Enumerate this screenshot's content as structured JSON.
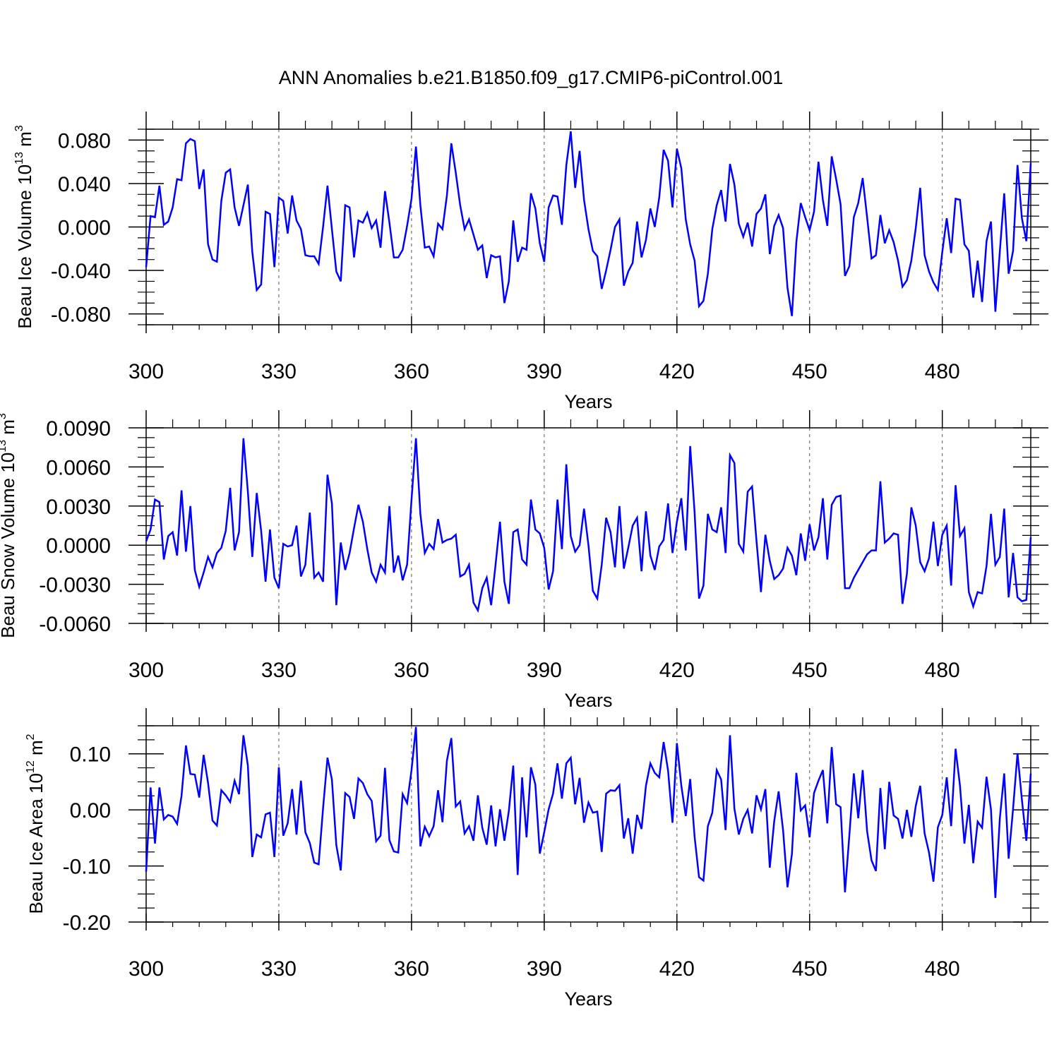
{
  "figure_title": "ANN Anomalies b.e21.B1850.f09_g17.CMIP6-piControl.001",
  "colors": {
    "line": "#0000ff",
    "axis": "#000000",
    "grid": "#555555"
  },
  "chart_data": [
    {
      "type": "line",
      "ylabel": {
        "main": "Beau Ice Volume 10",
        "exp": "13",
        "unit": " m",
        "unit_exp": "3"
      },
      "xlabel": "Years",
      "xlim": [
        300,
        500
      ],
      "ylim": [
        -0.09,
        0.09
      ],
      "xticks": [
        300,
        330,
        360,
        390,
        420,
        450,
        480
      ],
      "xtick_labels": [
        "300",
        "330",
        "360",
        "390",
        "420",
        "450",
        "480"
      ],
      "yticks": [
        -0.08,
        -0.04,
        0.0,
        0.04,
        0.08
      ],
      "ytick_labels": [
        "-0.080",
        "-0.040",
        "0.000",
        "0.040",
        "0.080"
      ],
      "grid": "vertical-dashed",
      "series": [
        {
          "x0": 300,
          "values": [
            -0.037,
            0.01,
            0.009,
            0.038,
            0.002,
            0.005,
            0.018,
            0.044,
            0.043,
            0.077,
            0.081,
            0.079,
            0.035,
            0.053,
            -0.016,
            -0.03,
            -0.032,
            0.024,
            0.05,
            0.053,
            0.018,
            0.001,
            0.02,
            0.039,
            -0.023,
            -0.058,
            -0.053,
            0.014,
            0.012,
            -0.037,
            0.027,
            0.024,
            -0.006,
            0.029,
            0.006,
            -0.002,
            -0.026,
            -0.027,
            -0.027,
            -0.034,
            0.0,
            0.038,
            -0.002,
            -0.041,
            -0.05,
            0.02,
            0.018,
            -0.028,
            0.006,
            0.004,
            0.013,
            -0.001,
            0.006,
            -0.019,
            0.033,
            0.004,
            -0.028,
            -0.028,
            -0.021,
            0.001,
            0.026,
            0.074,
            0.02,
            -0.019,
            -0.018,
            -0.027,
            0.003,
            -0.002,
            0.029,
            0.077,
            0.05,
            0.02,
            -0.002,
            0.007,
            -0.007,
            -0.021,
            -0.017,
            -0.047,
            -0.026,
            -0.028,
            -0.027,
            -0.07,
            -0.05,
            0.006,
            -0.032,
            -0.019,
            -0.021,
            0.031,
            0.017,
            -0.015,
            -0.032,
            0.018,
            0.029,
            0.028,
            0.002,
            0.057,
            0.088,
            0.036,
            0.07,
            0.025,
            -0.002,
            -0.022,
            -0.027,
            -0.057,
            -0.04,
            -0.021,
            0.0,
            0.007,
            -0.054,
            -0.041,
            -0.033,
            0.005,
            -0.028,
            -0.012,
            0.017,
            0.0,
            0.027,
            0.071,
            0.061,
            0.018,
            0.072,
            0.054,
            0.007,
            -0.016,
            -0.031,
            -0.073,
            -0.068,
            -0.043,
            -0.002,
            0.02,
            0.034,
            0.005,
            0.058,
            0.039,
            0.003,
            -0.009,
            0.004,
            -0.018,
            0.012,
            0.017,
            0.03,
            -0.025,
            0.001,
            0.011,
            -0.001,
            -0.056,
            -0.082,
            -0.014,
            0.022,
            0.009,
            -0.003,
            0.014,
            0.06,
            0.025,
            0.001,
            0.065,
            0.044,
            0.021,
            -0.045,
            -0.036,
            0.009,
            0.022,
            0.045,
            0.009,
            -0.029,
            -0.026,
            0.011,
            -0.015,
            -0.003,
            -0.014,
            -0.031,
            -0.055,
            -0.049,
            -0.031,
            -0.001,
            0.036,
            -0.026,
            -0.041,
            -0.051,
            -0.058,
            -0.023,
            0.008,
            -0.024,
            0.026,
            0.025,
            -0.016,
            -0.022,
            -0.065,
            -0.031,
            -0.069,
            -0.013,
            0.005,
            -0.078,
            -0.023,
            0.031,
            -0.043,
            -0.022,
            0.057,
            0.008,
            -0.013,
            0.059
          ]
        }
      ]
    },
    {
      "type": "line",
      "ylabel": {
        "main": "Beau Snow Volume 10",
        "exp": "13",
        "unit": " m",
        "unit_exp": "3"
      },
      "xlabel": "Years",
      "xlim": [
        300,
        500
      ],
      "ylim": [
        -0.006,
        0.009
      ],
      "xticks": [
        300,
        330,
        360,
        390,
        420,
        450,
        480
      ],
      "xtick_labels": [
        "300",
        "330",
        "360",
        "390",
        "420",
        "450",
        "480"
      ],
      "yticks": [
        -0.006,
        -0.003,
        0.0,
        0.003,
        0.006,
        0.009
      ],
      "ytick_labels": [
        "-0.0060",
        "-0.0030",
        "0.0000",
        "0.0030",
        "0.0060",
        "0.0090"
      ],
      "grid": "vertical-dashed",
      "series": [
        {
          "x0": 300,
          "values": [
            0.0003,
            0.0012,
            0.0035,
            0.0033,
            -0.0011,
            0.0007,
            0.001,
            -0.0008,
            0.0042,
            -0.0005,
            0.003,
            -0.0019,
            -0.0032,
            -0.0021,
            -0.0009,
            -0.0017,
            -0.0006,
            -0.0002,
            0.0011,
            0.0044,
            -0.0004,
            0.001,
            0.0082,
            0.0041,
            -0.0009,
            0.004,
            0.0011,
            -0.0028,
            0.0012,
            -0.0025,
            -0.0033,
            0.0001,
            -0.0001,
            0.0,
            0.0015,
            -0.0024,
            -0.0015,
            0.0025,
            -0.0025,
            -0.0021,
            -0.0028,
            0.0054,
            0.0032,
            -0.0046,
            0.0002,
            -0.0019,
            -0.0006,
            0.0013,
            0.0031,
            0.0018,
            -0.0003,
            -0.0021,
            -0.0028,
            -0.0015,
            -0.0021,
            0.003,
            -0.0021,
            -0.0008,
            -0.0027,
            -0.0015,
            0.0035,
            0.0082,
            0.0024,
            -0.0006,
            0.0001,
            -0.0003,
            0.002,
            0.0002,
            0.0004,
            0.0005,
            0.0008,
            -0.0024,
            -0.0022,
            -0.0015,
            -0.0044,
            -0.005,
            -0.0033,
            -0.0025,
            -0.0046,
            -0.0015,
            0.0018,
            -0.0028,
            -0.0045,
            0.001,
            0.0012,
            -0.0011,
            -0.0015,
            0.0035,
            0.0012,
            0.0009,
            -0.0002,
            -0.0034,
            -0.002,
            0.0035,
            -0.0003,
            0.0062,
            0.0007,
            -0.0005,
            0.0,
            0.0028,
            0.0,
            -0.0035,
            -0.0041,
            -0.0015,
            0.0021,
            0.001,
            -0.0017,
            0.003,
            -0.0018,
            -0.0002,
            0.0015,
            0.0021,
            -0.002,
            0.0026,
            -0.0008,
            -0.0019,
            -0.0001,
            0.0004,
            0.0032,
            -0.0006,
            0.0018,
            0.0036,
            -0.0004,
            0.0076,
            0.0025,
            -0.0041,
            -0.0031,
            0.0024,
            0.0012,
            0.001,
            0.0029,
            -0.0006,
            0.0069,
            0.0063,
            0.0001,
            -0.0005,
            0.0041,
            0.0045,
            0.0003,
            -0.0036,
            0.0008,
            -0.0012,
            -0.0026,
            -0.0023,
            -0.0018,
            -0.0002,
            -0.0008,
            -0.0023,
            0.0009,
            -0.0012,
            0.0016,
            -0.0004,
            0.0006,
            0.0036,
            -0.0011,
            0.0031,
            0.0037,
            0.0038,
            -0.0033,
            -0.0033,
            -0.0025,
            -0.0019,
            -0.0013,
            -0.0007,
            -0.0004,
            -0.0004,
            0.0049,
            0.0002,
            0.0005,
            0.0009,
            0.0008,
            -0.0045,
            -0.0022,
            0.0029,
            0.0015,
            -0.0013,
            -0.002,
            -0.001,
            0.0018,
            -0.0016,
            0.0008,
            0.0015,
            -0.0031,
            0.0046,
            0.0007,
            0.0013,
            -0.0036,
            -0.0047,
            -0.0036,
            -0.0037,
            -0.0016,
            0.0024,
            -0.0015,
            -0.0009,
            0.0028,
            -0.004,
            -0.0006,
            -0.004,
            -0.0043,
            -0.0042,
            0.0006
          ]
        }
      ]
    },
    {
      "type": "line",
      "ylabel": {
        "main": "Beau Ice Area 10",
        "exp": "12",
        "unit": " m",
        "unit_exp": "2"
      },
      "xlabel": "Years",
      "xlim": [
        300,
        500
      ],
      "ylim": [
        -0.2,
        0.15
      ],
      "xticks": [
        300,
        330,
        360,
        390,
        420,
        450,
        480
      ],
      "xtick_labels": [
        "300",
        "330",
        "360",
        "390",
        "420",
        "450",
        "480"
      ],
      "yticks": [
        -0.2,
        -0.1,
        0.0,
        0.1
      ],
      "ytick_labels": [
        "-0.20",
        "-0.10",
        "0.00",
        "0.10"
      ],
      "grid": "vertical-dashed",
      "series": [
        {
          "x0": 300,
          "values": [
            -0.11,
            0.04,
            -0.06,
            0.04,
            -0.017,
            -0.009,
            -0.012,
            -0.025,
            0.025,
            0.115,
            0.064,
            0.063,
            0.022,
            0.098,
            0.048,
            -0.019,
            -0.028,
            0.035,
            0.026,
            0.014,
            0.052,
            0.028,
            0.133,
            0.079,
            -0.084,
            -0.044,
            -0.049,
            -0.008,
            -0.005,
            -0.084,
            0.076,
            -0.046,
            -0.024,
            0.037,
            -0.044,
            0.052,
            -0.04,
            -0.059,
            -0.094,
            -0.097,
            0.003,
            0.093,
            0.054,
            -0.063,
            -0.108,
            0.03,
            0.023,
            -0.016,
            0.056,
            0.048,
            0.028,
            0.016,
            -0.056,
            -0.046,
            0.075,
            -0.054,
            -0.074,
            -0.076,
            0.028,
            0.012,
            0.071,
            0.148,
            -0.065,
            -0.03,
            -0.047,
            -0.029,
            0.035,
            -0.022,
            0.088,
            0.128,
            0.006,
            0.015,
            -0.042,
            -0.029,
            -0.055,
            0.026,
            -0.032,
            -0.062,
            0.008,
            -0.065,
            0.001,
            -0.055,
            -0.002,
            0.079,
            -0.116,
            0.058,
            -0.049,
            0.076,
            0.045,
            -0.078,
            -0.04,
            0.001,
            0.029,
            0.083,
            0.02,
            0.083,
            0.093,
            0.01,
            0.057,
            -0.023,
            0.013,
            -0.005,
            -0.003,
            -0.075,
            0.029,
            0.035,
            0.034,
            0.044,
            -0.051,
            -0.015,
            -0.078,
            -0.009,
            -0.034,
            0.043,
            0.083,
            0.066,
            0.058,
            0.121,
            0.07,
            -0.023,
            0.119,
            0.043,
            -0.011,
            0.055,
            -0.048,
            -0.12,
            -0.126,
            -0.029,
            -0.005,
            0.071,
            0.054,
            -0.036,
            0.133,
            0.002,
            -0.044,
            -0.016,
            0.0,
            -0.042,
            0.026,
            0.001,
            0.037,
            -0.103,
            -0.02,
            0.033,
            -0.036,
            -0.138,
            -0.079,
            0.066,
            -0.001,
            0.008,
            -0.049,
            0.03,
            0.052,
            0.071,
            -0.024,
            0.112,
            0.01,
            0.005,
            -0.147,
            -0.044,
            0.065,
            -0.015,
            0.071,
            -0.038,
            -0.09,
            -0.109,
            0.039,
            -0.07,
            0.05,
            -0.01,
            -0.016,
            -0.051,
            0.0,
            -0.048,
            0.007,
            0.043,
            -0.042,
            -0.076,
            -0.128,
            -0.031,
            -0.009,
            0.058,
            -0.029,
            0.109,
            0.043,
            -0.06,
            0.009,
            -0.095,
            -0.021,
            -0.032,
            0.059,
            0.001,
            -0.157,
            -0.016,
            0.065,
            -0.087,
            0.002,
            0.101,
            0.018,
            -0.055,
            0.065
          ]
        }
      ]
    }
  ]
}
